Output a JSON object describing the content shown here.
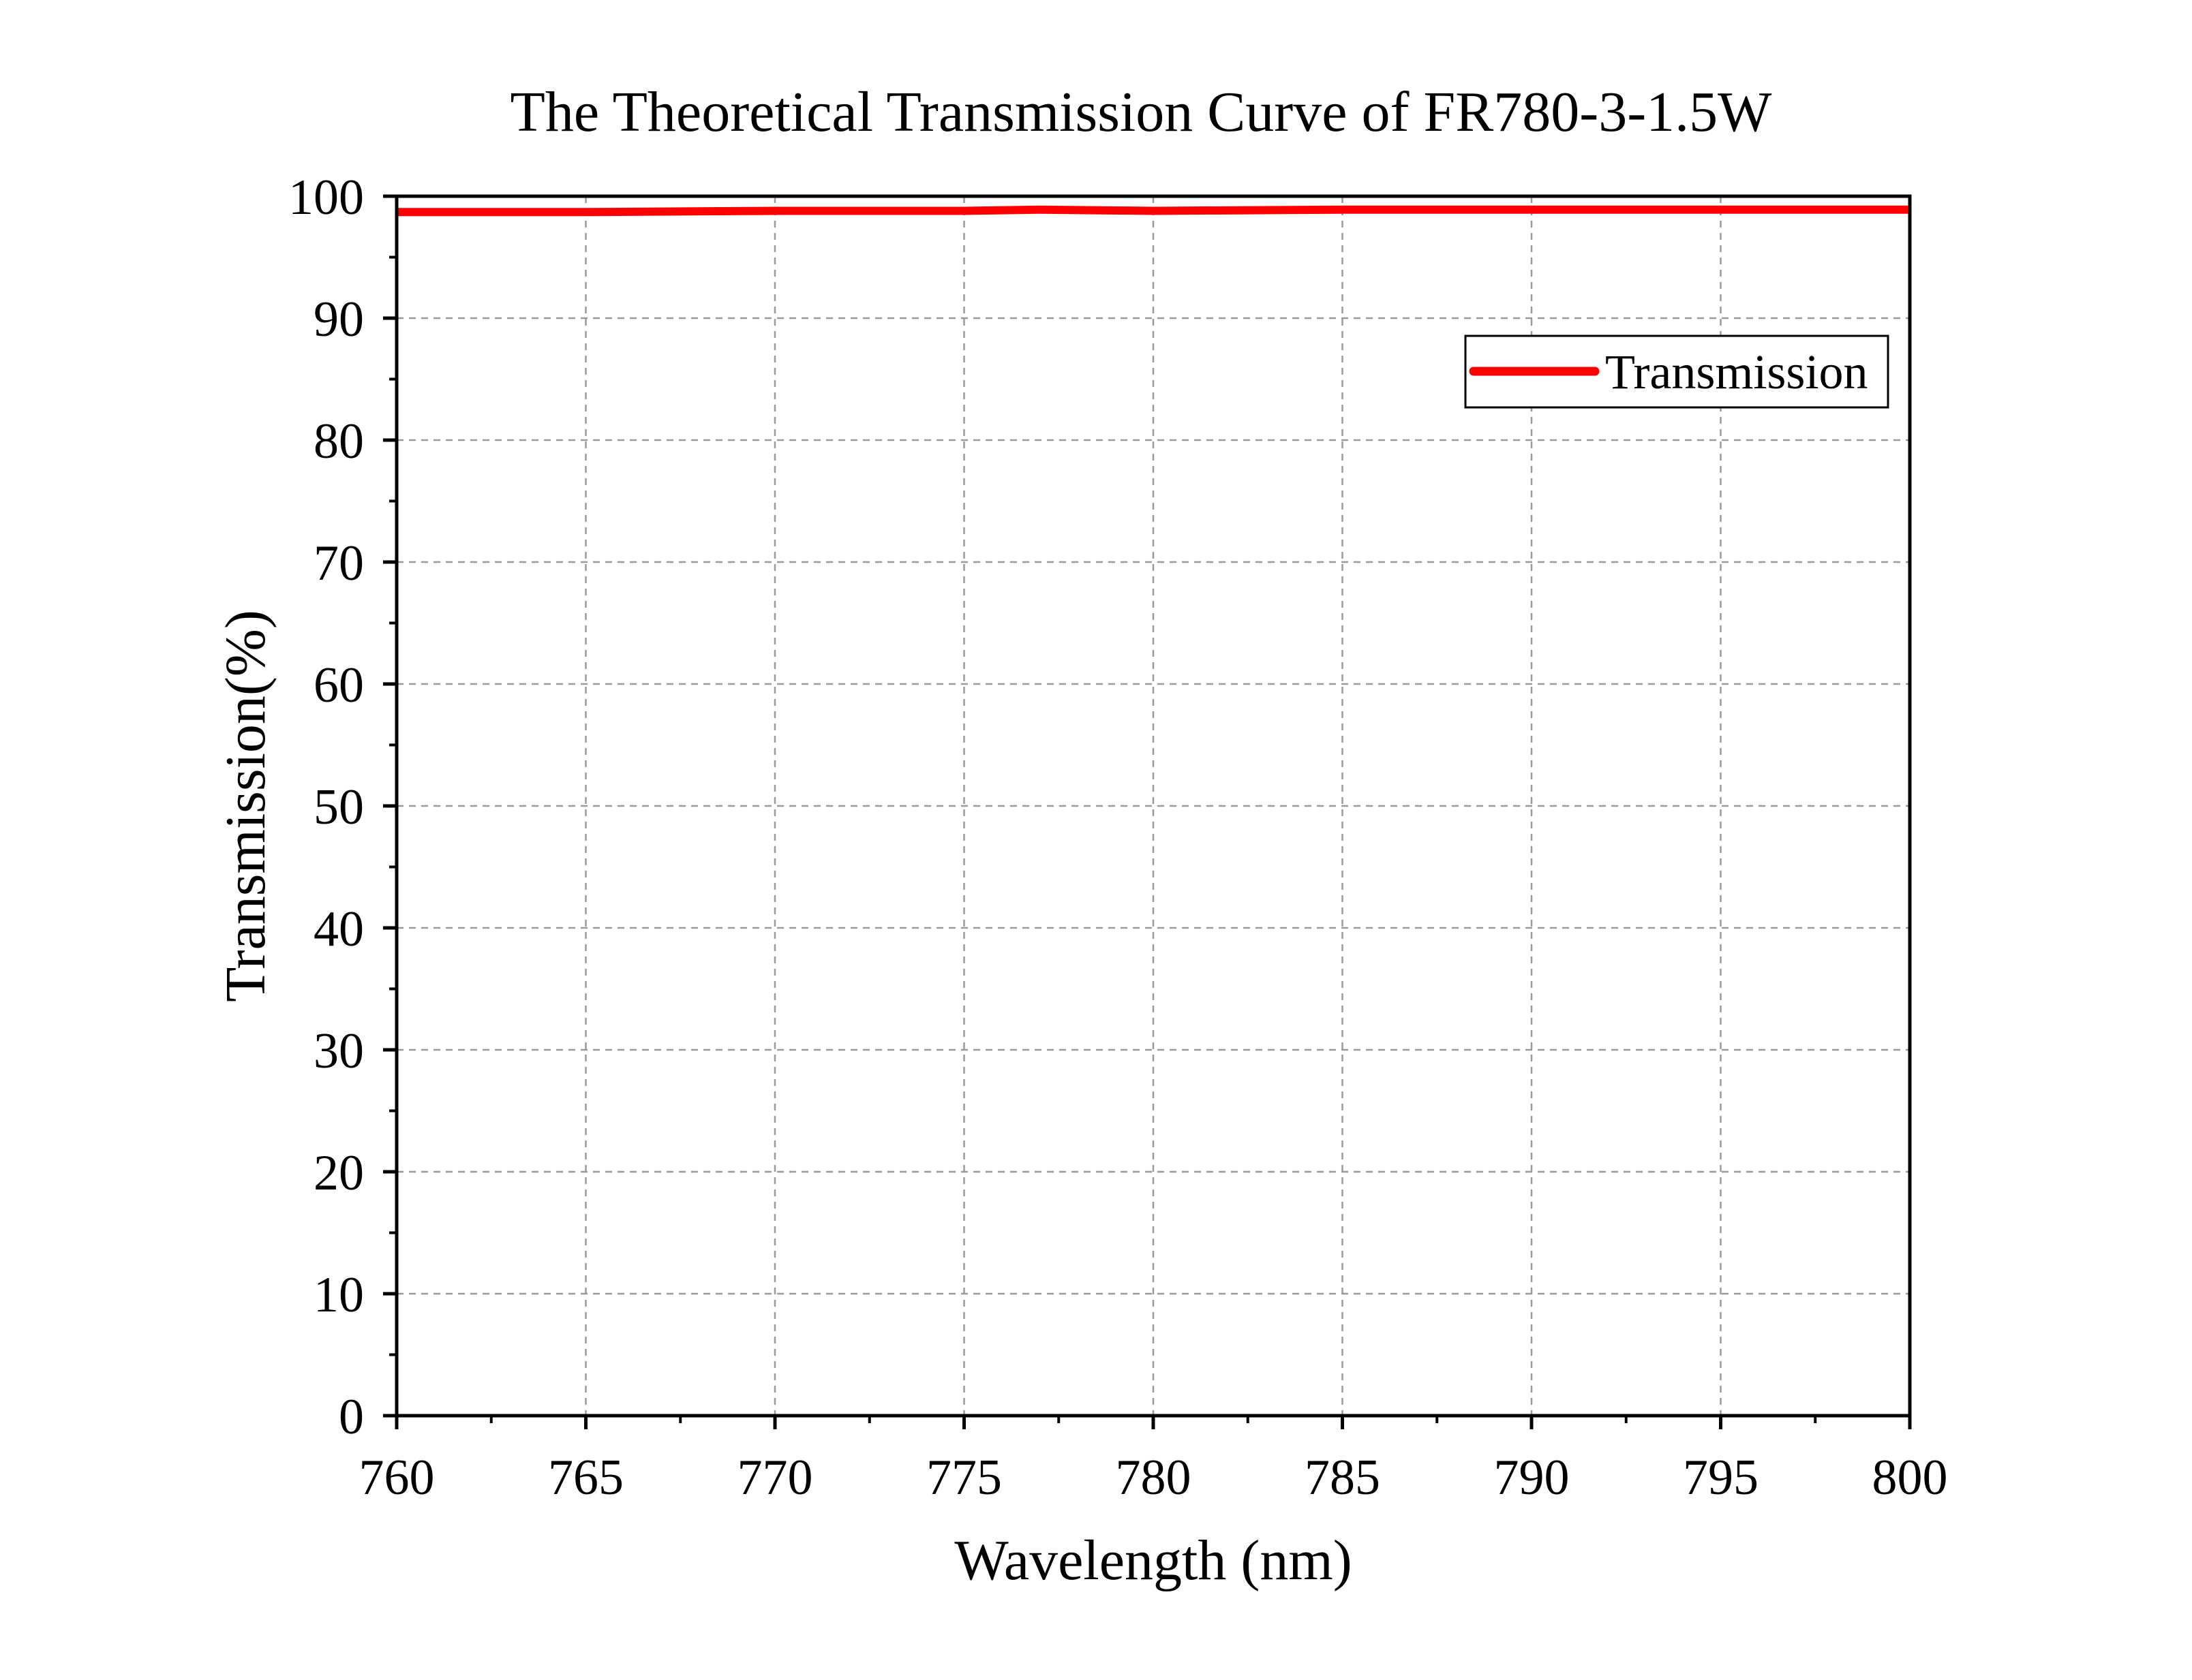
{
  "chart_data": {
    "type": "line",
    "title": "The Theoretical Transmission Curve of FR780-3-1.5W",
    "xlabel": "Wavelength (nm)",
    "ylabel": "Transmission(%)",
    "xlim": [
      760,
      800
    ],
    "ylim": [
      0,
      100
    ],
    "x_ticks": [
      "760",
      "765",
      "770",
      "775",
      "780",
      "785",
      "790",
      "795",
      "800"
    ],
    "y_ticks": [
      "0",
      "10",
      "20",
      "30",
      "40",
      "50",
      "60",
      "70",
      "80",
      "90",
      "100"
    ],
    "grid": true,
    "grid_style": "dashed",
    "legend_position": "top-right",
    "series": [
      {
        "name": "Transmission",
        "color": "#ff0000",
        "x": [
          760,
          765,
          770,
          775,
          777,
          780,
          785,
          790,
          795,
          800
        ],
        "y": [
          98.7,
          98.7,
          98.8,
          98.8,
          98.9,
          98.8,
          98.9,
          98.9,
          98.9,
          98.9
        ]
      }
    ]
  }
}
